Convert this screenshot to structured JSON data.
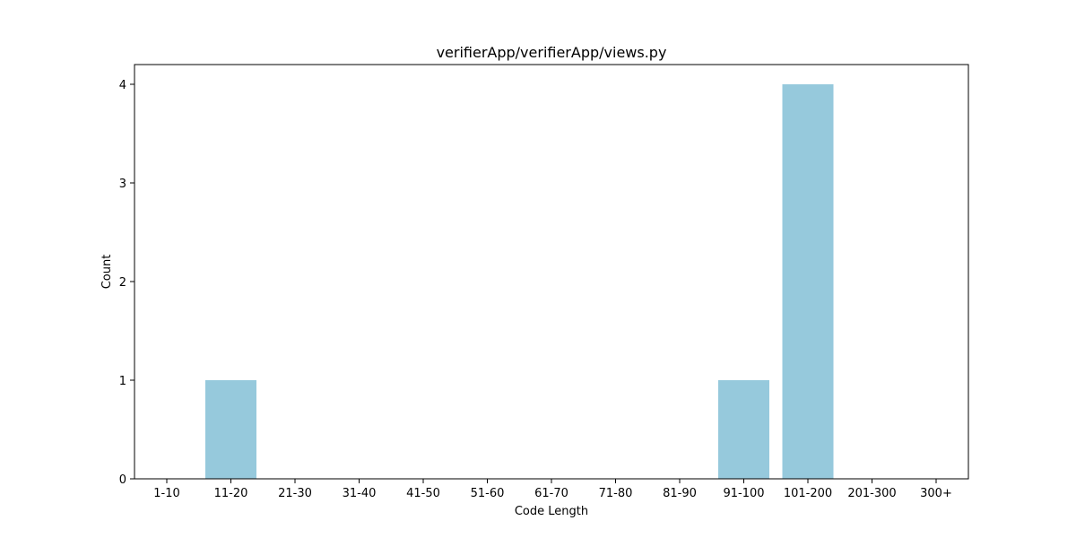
{
  "chart_data": {
    "type": "bar",
    "title": "verifierApp/verifierApp/views.py",
    "xlabel": "Code Length",
    "ylabel": "Count",
    "categories": [
      "1-10",
      "11-20",
      "21-30",
      "31-40",
      "41-50",
      "51-60",
      "61-70",
      "71-80",
      "81-90",
      "91-100",
      "101-200",
      "201-300",
      "300+"
    ],
    "values": [
      0,
      1,
      0,
      0,
      0,
      0,
      0,
      0,
      0,
      1,
      4,
      0,
      0
    ],
    "ylim": [
      0,
      4.2
    ],
    "yticks": [
      "0",
      "1",
      "2",
      "3",
      "4"
    ],
    "bar_color": "#96c9dc",
    "grid": false,
    "legend": "none"
  }
}
